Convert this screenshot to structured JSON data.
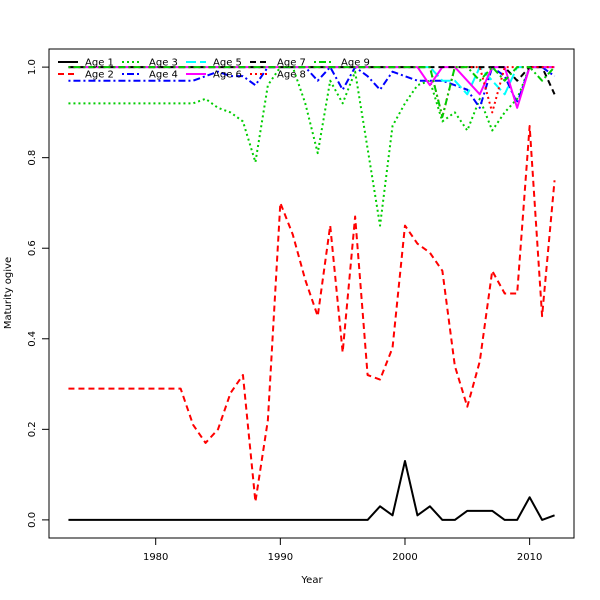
{
  "chart_data": {
    "type": "line",
    "title": "",
    "xlabel": "Year",
    "ylabel": "Maturity ogive",
    "xlim": [
      1973,
      2012
    ],
    "ylim": [
      0.0,
      1.0
    ],
    "x_ticks": [
      1980,
      1990,
      2000,
      2010
    ],
    "y_ticks": [
      0.0,
      0.2,
      0.4,
      0.6,
      0.8,
      1.0
    ],
    "x_tick_labels": [
      "1980",
      "1990",
      "2000",
      "2010"
    ],
    "y_tick_labels": [
      "0.0",
      "0.2",
      "0.4",
      "0.6",
      "0.8",
      "1.0"
    ],
    "legend_position": "top-left, inside",
    "grid": false,
    "x": [
      1973,
      1974,
      1975,
      1976,
      1977,
      1978,
      1979,
      1980,
      1981,
      1982,
      1983,
      1984,
      1985,
      1986,
      1987,
      1988,
      1989,
      1990,
      1991,
      1992,
      1993,
      1994,
      1995,
      1996,
      1997,
      1998,
      1999,
      2000,
      2001,
      2002,
      2003,
      2004,
      2005,
      2006,
      2007,
      2008,
      2009,
      2010,
      2011,
      2012
    ],
    "series": [
      {
        "name": "Age 1",
        "color": "#000000",
        "dash": "solid",
        "values": [
          0,
          0,
          0,
          0,
          0,
          0,
          0,
          0,
          0,
          0,
          0,
          0,
          0,
          0,
          0,
          0,
          0,
          0,
          0,
          0,
          0,
          0,
          0,
          0,
          0,
          0.03,
          0.01,
          0.13,
          0.01,
          0.03,
          0,
          0,
          0.02,
          0.02,
          0.02,
          0,
          0,
          0.05,
          0,
          0.01
        ]
      },
      {
        "name": "Age 2",
        "color": "#ff0000",
        "dash": "dashed",
        "values": [
          0.29,
          0.29,
          0.29,
          0.29,
          0.29,
          0.29,
          0.29,
          0.29,
          0.29,
          0.29,
          0.21,
          0.17,
          0.2,
          0.28,
          0.32,
          0.04,
          0.22,
          0.7,
          0.63,
          0.53,
          0.45,
          0.65,
          0.37,
          0.67,
          0.32,
          0.31,
          0.38,
          0.65,
          0.61,
          0.59,
          0.55,
          0.34,
          0.25,
          0.35,
          0.55,
          0.5,
          0.5,
          0.87,
          0.45,
          0.75
        ]
      },
      {
        "name": "Age 3",
        "color": "#00cd00",
        "dash": "dotted",
        "values": [
          0.92,
          0.92,
          0.92,
          0.92,
          0.92,
          0.92,
          0.92,
          0.92,
          0.92,
          0.92,
          0.92,
          0.93,
          0.91,
          0.9,
          0.88,
          0.79,
          0.96,
          1.0,
          1.0,
          0.92,
          0.81,
          0.97,
          0.92,
          0.99,
          0.82,
          0.65,
          0.87,
          0.92,
          0.96,
          0.97,
          0.88,
          0.9,
          0.86,
          0.93,
          0.86,
          0.9,
          0.93,
          1.0,
          1.0,
          1.0
        ]
      },
      {
        "name": "Age 4",
        "color": "#0000ff",
        "dash": "dotdash",
        "values": [
          0.97,
          0.97,
          0.97,
          0.97,
          0.97,
          0.97,
          0.97,
          0.97,
          0.97,
          0.97,
          0.97,
          0.98,
          0.99,
          0.98,
          0.98,
          0.96,
          1.0,
          1.0,
          1.0,
          1.0,
          0.97,
          1.0,
          0.95,
          1.0,
          0.98,
          0.95,
          0.99,
          0.98,
          0.97,
          0.97,
          0.97,
          0.96,
          0.95,
          0.91,
          1.0,
          0.98,
          0.92,
          1.0,
          1.0,
          0.98
        ]
      },
      {
        "name": "Age 5",
        "color": "#00ffff",
        "dash": "longdash",
        "values": [
          1,
          1,
          1,
          1,
          1,
          1,
          1,
          1,
          1,
          1,
          1,
          1,
          1,
          1,
          1,
          1,
          1,
          1,
          1,
          1,
          1,
          1,
          1,
          1,
          1,
          1,
          1,
          1,
          1,
          1,
          0.97,
          0.97,
          0.94,
          1.0,
          0.97,
          0.94,
          1.0,
          1.0,
          1.0,
          1.0
        ]
      },
      {
        "name": "Age 6",
        "color": "#ff00ff",
        "dash": "solid",
        "values": [
          1,
          1,
          1,
          1,
          1,
          1,
          1,
          1,
          1,
          1,
          1,
          1,
          1,
          1,
          1,
          1,
          1,
          1,
          1,
          1,
          1,
          1,
          1,
          1,
          1,
          1,
          1,
          1,
          1,
          0.96,
          1.0,
          1.0,
          0.97,
          0.94,
          1.0,
          1.0,
          0.91,
          1.0,
          1.0,
          1.0
        ]
      },
      {
        "name": "Age 7",
        "color": "#000000",
        "dash": "dashed",
        "values": [
          1,
          1,
          1,
          1,
          1,
          1,
          1,
          1,
          1,
          1,
          1,
          1,
          1,
          1,
          1,
          1,
          1,
          1,
          1,
          1,
          1,
          1,
          1,
          1,
          1,
          1,
          1,
          1,
          1,
          1,
          1,
          1,
          1,
          1,
          1,
          1,
          0.97,
          1.0,
          1.0,
          0.94
        ]
      },
      {
        "name": "Age 8",
        "color": "#ff0000",
        "dash": "dotted",
        "values": [
          1,
          1,
          1,
          1,
          1,
          1,
          1,
          1,
          1,
          1,
          1,
          1,
          1,
          1,
          1,
          1,
          1,
          1,
          1,
          1,
          1,
          1,
          1,
          1,
          1,
          1,
          1,
          1,
          1,
          1,
          0.89,
          1.0,
          1.0,
          1.0,
          0.9,
          1.0,
          1.0,
          1.0,
          1.0,
          1.0
        ]
      },
      {
        "name": "Age 9",
        "color": "#00cd00",
        "dash": "dotdash",
        "values": [
          1,
          1,
          1,
          1,
          1,
          1,
          1,
          1,
          1,
          1,
          1,
          1,
          1,
          1,
          1,
          1,
          1,
          1,
          1,
          1,
          1,
          1,
          1,
          1,
          1,
          1,
          1,
          1,
          1,
          1,
          0.89,
          1.0,
          1.0,
          0.97,
          1.0,
          0.97,
          1.0,
          1.0,
          0.97,
          1.0
        ]
      }
    ]
  }
}
